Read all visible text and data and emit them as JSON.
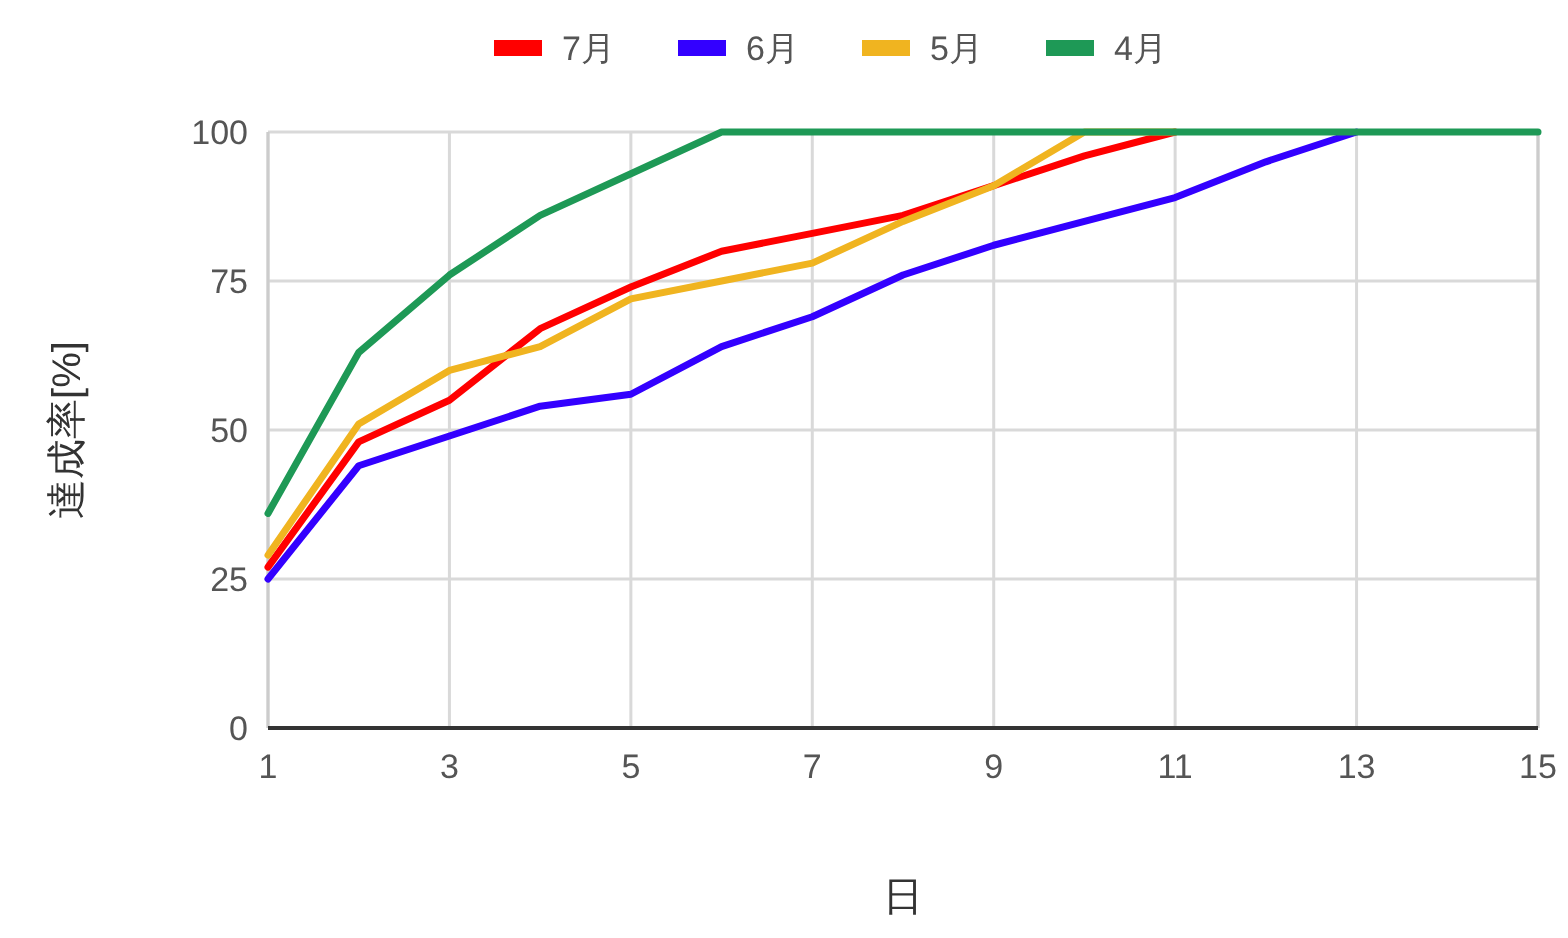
{
  "chart_data": {
    "type": "line",
    "xlabel": "日",
    "ylabel": "達成率[%]",
    "legend": "top",
    "grid": true,
    "line_style": "solid",
    "marker": "none",
    "x": [
      1,
      2,
      3,
      4,
      5,
      6,
      7,
      8,
      9,
      10,
      11,
      12,
      13,
      14,
      15
    ],
    "xlim": [
      1,
      15
    ],
    "xticks": [
      1,
      3,
      5,
      7,
      9,
      11,
      13,
      15
    ],
    "ylim": [
      0,
      100
    ],
    "yticks": [
      0,
      25,
      50,
      75,
      100
    ],
    "series": [
      {
        "name": "7月",
        "color": "#ff0000",
        "values": [
          27,
          48,
          55,
          67,
          74,
          80,
          83,
          86,
          91,
          96,
          100,
          null,
          null,
          null,
          null
        ]
      },
      {
        "name": "6月",
        "color": "#3300ff",
        "values": [
          25,
          44,
          49,
          54,
          56,
          64,
          69,
          76,
          81,
          85,
          89,
          95,
          100,
          null,
          null
        ]
      },
      {
        "name": "5月",
        "color": "#f0b420",
        "values": [
          29,
          51,
          60,
          64,
          72,
          75,
          78,
          85,
          91,
          100,
          100,
          null,
          null,
          null,
          null
        ]
      },
      {
        "name": "4月",
        "color": "#1e9956",
        "values": [
          36,
          63,
          76,
          86,
          93,
          100,
          100,
          100,
          100,
          100,
          100,
          100,
          100,
          100,
          100
        ]
      }
    ]
  }
}
